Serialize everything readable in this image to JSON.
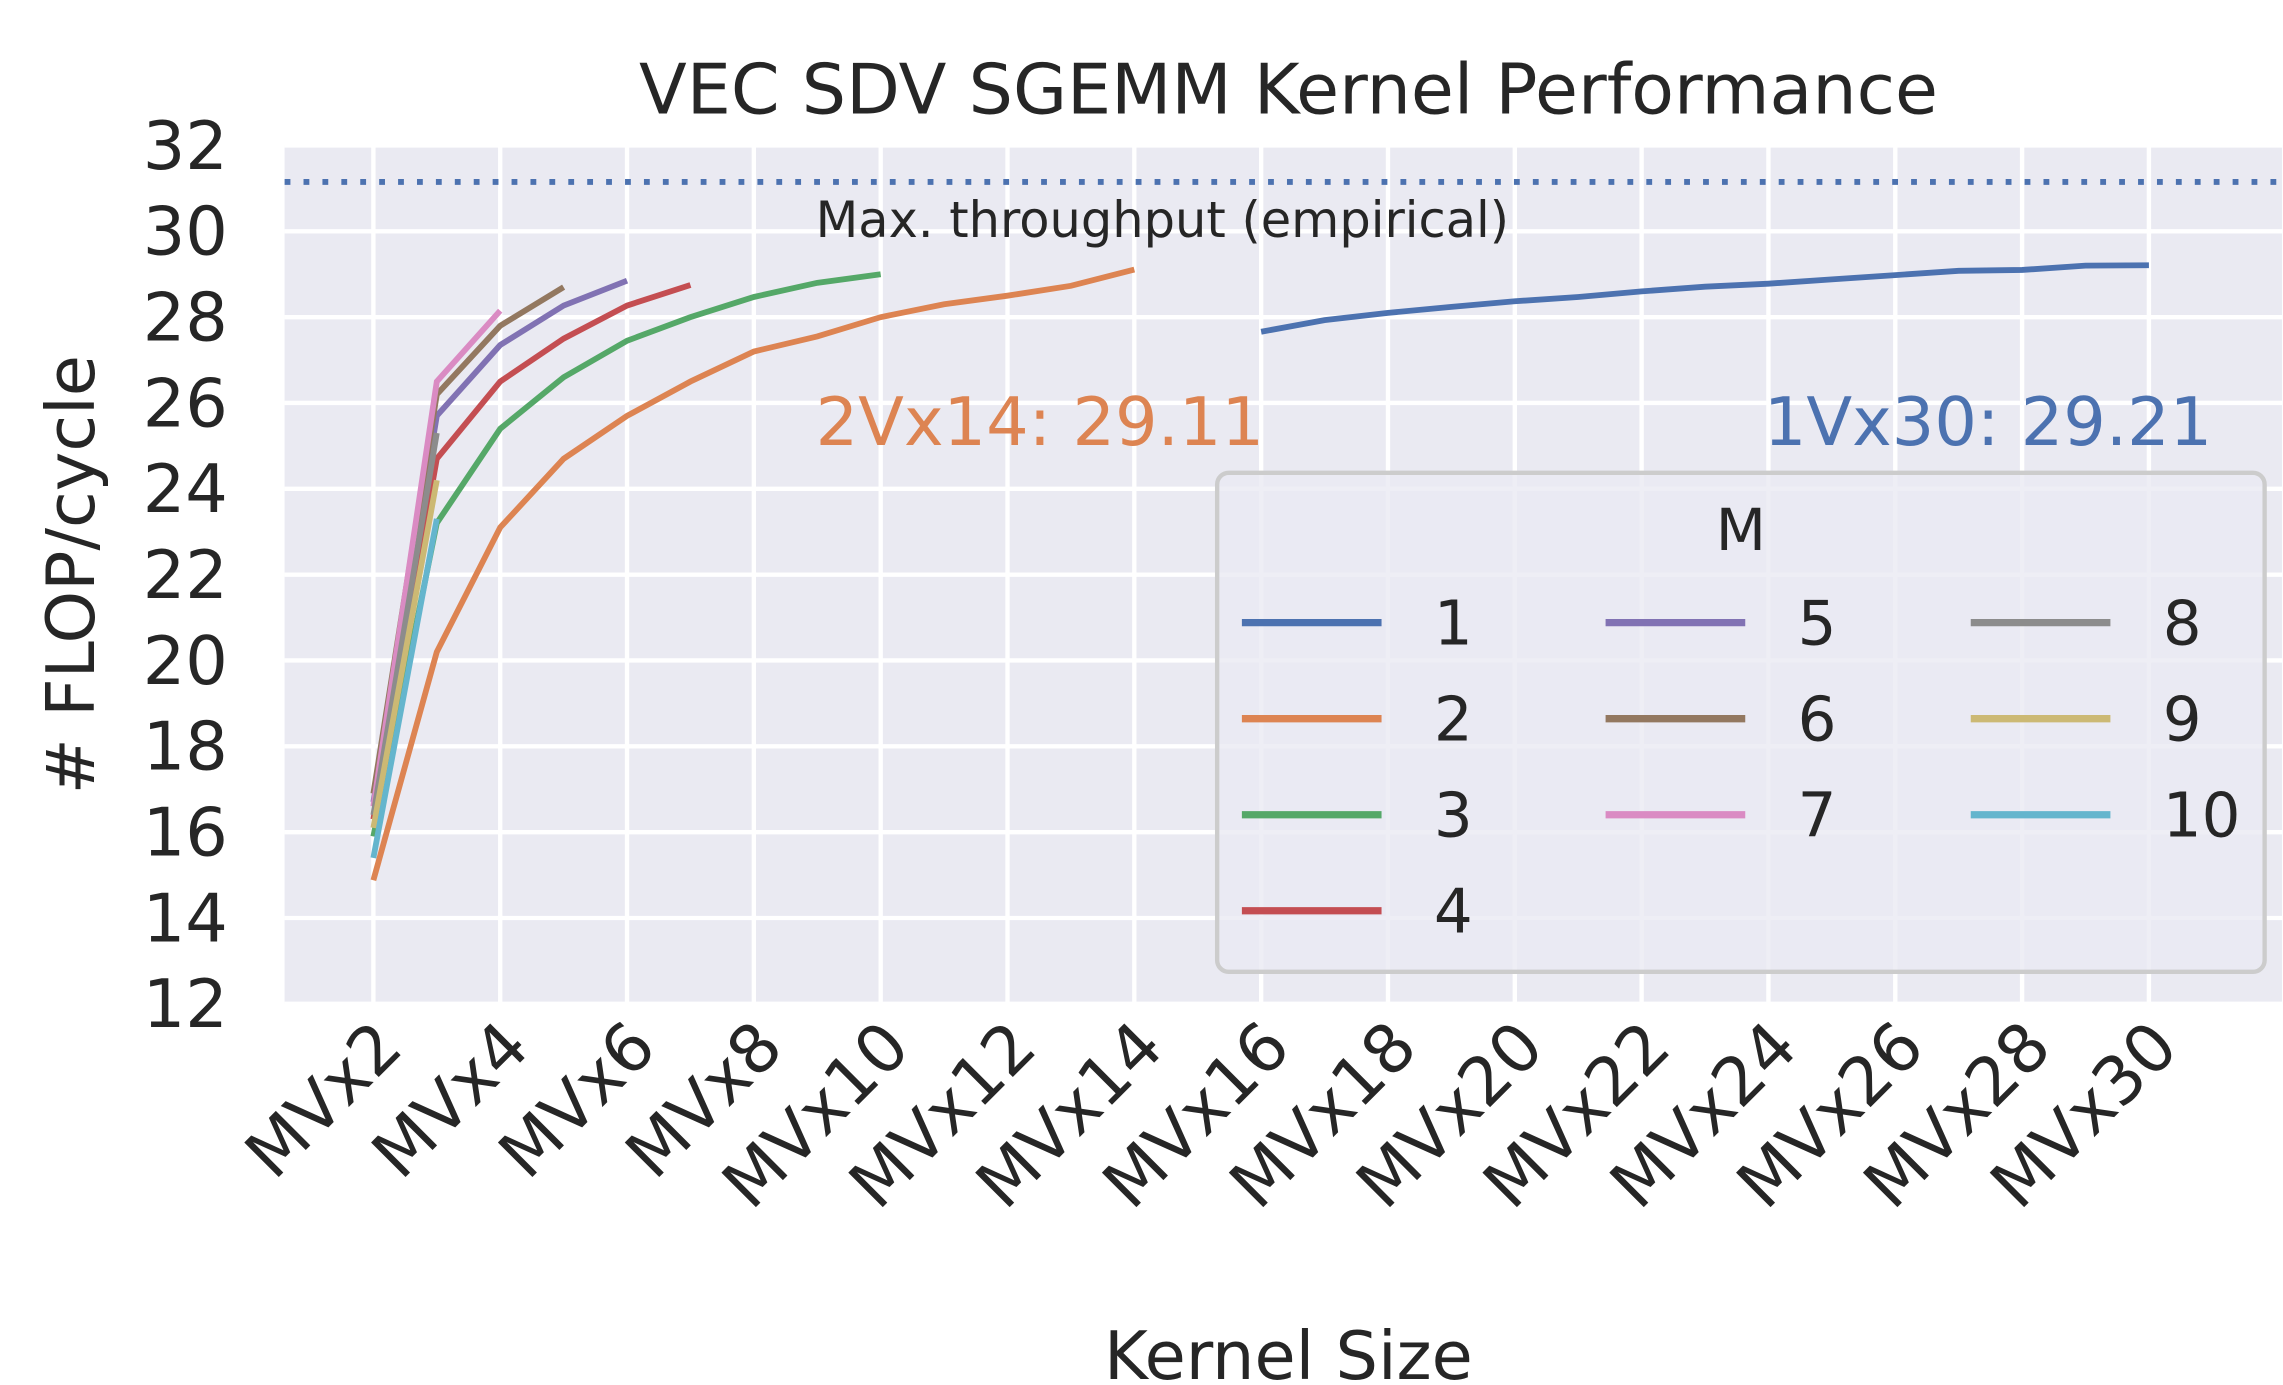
{
  "chart_data": {
    "type": "line",
    "title": "VEC SDV SGEMM Kernel Performance",
    "x_label": "Kernel Size",
    "y_label": "# FLOP/cycle",
    "xlim": [
      0.6,
      32.1
    ],
    "ylim": [
      12,
      32
    ],
    "xticks": [
      {
        "value": 2,
        "label": "MVx2"
      },
      {
        "value": 4,
        "label": "MVx4"
      },
      {
        "value": 6,
        "label": "MVx6"
      },
      {
        "value": 8,
        "label": "MVx8"
      },
      {
        "value": 10,
        "label": "MVx10"
      },
      {
        "value": 12,
        "label": "MVx12"
      },
      {
        "value": 14,
        "label": "MVx14"
      },
      {
        "value": 16,
        "label": "MVx16"
      },
      {
        "value": 18,
        "label": "MVx18"
      },
      {
        "value": 20,
        "label": "MVx20"
      },
      {
        "value": 22,
        "label": "MVx22"
      },
      {
        "value": 24,
        "label": "MVx24"
      },
      {
        "value": 26,
        "label": "MVx26"
      },
      {
        "value": 28,
        "label": "MVx28"
      },
      {
        "value": 30,
        "label": "MVx30"
      }
    ],
    "yticks": [
      12,
      14,
      16,
      18,
      20,
      22,
      24,
      26,
      28,
      30,
      32
    ],
    "grid": true,
    "legend_title": "M",
    "legend_position": "lower right",
    "reference_line": {
      "value": 31.15,
      "label": "Max. throughput (empirical)",
      "color": "#4c72b0"
    },
    "annotations": [
      {
        "text": "2Vx14: 29.11",
        "color": "#dd8452"
      },
      {
        "text": "1Vx30: 29.21",
        "color": "#4c72b0"
      }
    ],
    "series": [
      {
        "name": "1",
        "color": "#4c72b0",
        "x": [
          16,
          17,
          18,
          19,
          20,
          21,
          22,
          23,
          24,
          25,
          26,
          27,
          28,
          29,
          30
        ],
        "values": [
          27.66,
          27.93,
          28.1,
          28.24,
          28.37,
          28.47,
          28.6,
          28.71,
          28.78,
          28.88,
          28.98,
          29.08,
          29.1,
          29.2,
          29.21
        ]
      },
      {
        "name": "2",
        "color": "#dd8452",
        "x": [
          2,
          3,
          4,
          5,
          6,
          7,
          8,
          9,
          10,
          11,
          12,
          13,
          14
        ],
        "values": [
          14.88,
          20.2,
          23.1,
          24.7,
          25.7,
          26.5,
          27.2,
          27.55,
          28.0,
          28.3,
          28.5,
          28.73,
          29.11
        ]
      },
      {
        "name": "3",
        "color": "#55a868",
        "x": [
          2,
          3,
          4,
          5,
          6,
          7,
          8,
          9,
          10
        ],
        "values": [
          15.9,
          23.2,
          25.4,
          26.6,
          27.45,
          28.0,
          28.47,
          28.8,
          29.0
        ]
      },
      {
        "name": "4",
        "color": "#c44e52",
        "x": [
          2,
          3,
          4,
          5,
          6,
          7
        ],
        "values": [
          16.3,
          24.7,
          26.5,
          27.5,
          28.27,
          28.75
        ]
      },
      {
        "name": "5",
        "color": "#8172b3",
        "x": [
          2,
          3,
          4,
          5,
          6
        ],
        "values": [
          16.7,
          25.7,
          27.35,
          28.27,
          28.85
        ]
      },
      {
        "name": "6",
        "color": "#937860",
        "x": [
          2,
          3,
          4,
          5
        ],
        "values": [
          16.9,
          26.2,
          27.8,
          28.7
        ]
      },
      {
        "name": "7",
        "color": "#da8bc3",
        "x": [
          2,
          3,
          4
        ],
        "values": [
          16.6,
          26.5,
          28.15
        ]
      },
      {
        "name": "8",
        "color": "#8c8c8c",
        "x": [
          2,
          3
        ],
        "values": [
          16.4,
          25.3
        ]
      },
      {
        "name": "9",
        "color": "#ccb974",
        "x": [
          2,
          3
        ],
        "values": [
          16.1,
          24.2
        ]
      },
      {
        "name": "10",
        "color": "#64b5cd",
        "x": [
          2,
          3
        ],
        "values": [
          15.4,
          23.3
        ]
      }
    ]
  }
}
